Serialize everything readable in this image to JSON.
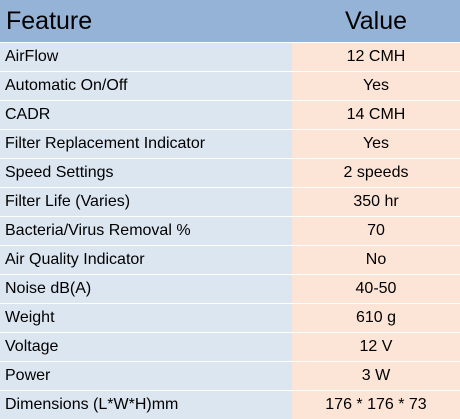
{
  "table": {
    "header": [
      "Feature",
      "Value"
    ],
    "rows": [
      [
        "AirFlow",
        "12 CMH"
      ],
      [
        "Automatic On/Off",
        "Yes"
      ],
      [
        "CADR",
        "14 CMH"
      ],
      [
        "Filter Replacement Indicator",
        "Yes"
      ],
      [
        "Speed Settings",
        "2 speeds"
      ],
      [
        "Filter Life (Varies)",
        "350 hr"
      ],
      [
        "Bacteria/Virus Removal %",
        "70"
      ],
      [
        "Air Quality Indicator",
        "No"
      ],
      [
        "Noise dB(A)",
        "40-50"
      ],
      [
        "Weight",
        "610 g"
      ],
      [
        "Voltage",
        "12 V"
      ],
      [
        "Power",
        "3 W"
      ],
      [
        "Dimensions (L*W*H)mm",
        "176 * 176 * 73"
      ]
    ]
  }
}
